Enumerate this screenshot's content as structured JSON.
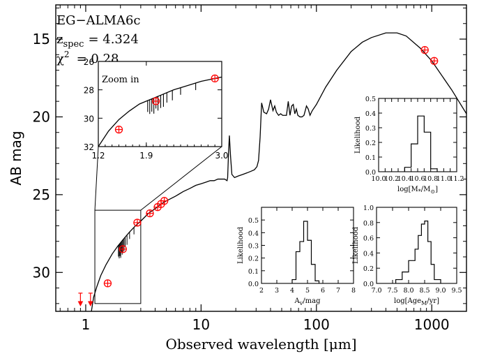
{
  "chart_data": [
    {
      "id": "main",
      "type": "line",
      "xlabel": "Observed wavelength [μm]",
      "ylabel": "AB mag",
      "xscale": "log",
      "xlim": [
        0.55,
        2000
      ],
      "ylim": [
        32.5,
        12.8
      ],
      "yaxis_inverted": true,
      "xticks": [
        1,
        10,
        100,
        1000
      ],
      "xtick_labels": [
        "1",
        "10",
        "100",
        "1000"
      ],
      "yticks": [
        15,
        20,
        25,
        30
      ],
      "ytick_labels": [
        "15",
        "20",
        "25",
        "30"
      ],
      "annotation": {
        "name": "EG−ALMA6c",
        "z_label": "z",
        "z_sub": "spec",
        "z_value": "=  4.324",
        "chi_label": "χ",
        "chi_sup": "2",
        "chi_value": "= 0.28"
      },
      "model_sed": {
        "x": [
          1.12,
          1.17,
          1.25,
          1.35,
          1.5,
          1.7,
          1.9,
          2.1,
          2.4,
          2.7,
          3.0,
          3.5,
          4.0,
          4.5,
          5.0,
          6.0,
          7.0,
          8.0,
          9.0,
          10.0,
          11.0,
          12.0,
          13.0,
          14.0,
          15.0,
          16.0,
          16.8,
          17.0,
          17.3,
          17.6,
          18.0,
          18.5,
          19.5,
          21.0,
          23.0,
          25.0,
          27.0,
          29.0,
          30.5,
          31.5,
          32.5,
          33.5,
          35.0,
          37.0,
          38.5,
          40.0,
          42.0,
          43.5,
          45.0,
          47.0,
          49.0,
          51.0,
          53.0,
          55.0,
          57.0,
          59.0,
          61.0,
          63.0,
          65.0,
          67.0,
          69.0,
          72.0,
          75.0,
          78.0,
          80.0,
          82.0,
          85.0,
          88.0,
          92.0,
          100,
          120,
          150,
          200,
          250,
          300,
          400,
          500,
          600,
          800,
          1000,
          1500,
          2000
        ],
        "y": [
          32.5,
          31.6,
          30.9,
          30.2,
          29.5,
          28.8,
          28.3,
          27.9,
          27.4,
          27.0,
          26.7,
          26.2,
          25.9,
          25.6,
          25.4,
          25.1,
          24.8,
          24.6,
          24.4,
          24.3,
          24.2,
          24.1,
          24.1,
          24.0,
          24.0,
          24.0,
          24.1,
          23.9,
          22.3,
          21.2,
          22.5,
          23.7,
          23.9,
          23.8,
          23.7,
          23.6,
          23.5,
          23.4,
          23.2,
          22.8,
          21.3,
          19.1,
          19.7,
          19.8,
          19.5,
          18.9,
          19.6,
          19.3,
          19.7,
          19.9,
          19.8,
          19.9,
          19.9,
          19.9,
          19.0,
          19.9,
          19.3,
          19.2,
          19.8,
          19.5,
          19.9,
          20.0,
          20.0,
          19.9,
          19.6,
          19.3,
          19.5,
          19.9,
          19.6,
          19.2,
          18.1,
          17.0,
          15.8,
          15.2,
          14.9,
          14.6,
          14.6,
          14.8,
          15.6,
          16.4,
          18.3,
          19.8
        ]
      },
      "photometry": {
        "x": [
          1.55,
          2.1,
          2.8,
          3.6,
          4.2,
          4.5,
          4.8,
          870,
          1050
        ],
        "y": [
          30.7,
          28.5,
          26.8,
          26.2,
          25.8,
          25.6,
          25.4,
          15.7,
          16.4
        ]
      },
      "upper_limits": {
        "x": [
          0.9,
          1.1
        ],
        "y": [
          31.6,
          31.6
        ]
      },
      "zoom_box": {
        "x": [
          1.2,
          3.0
        ],
        "y": [
          26.0,
          32.0
        ]
      }
    },
    {
      "id": "zoom",
      "type": "line",
      "title": "Zoom in",
      "xlim": [
        1.2,
        3.0
      ],
      "ylim": [
        32,
        26
      ],
      "xticks": [
        1.2,
        1.9,
        3.0
      ],
      "xtick_labels": [
        "1.2",
        "1.9",
        "3.0"
      ],
      "yticks": [
        26,
        28,
        30,
        32
      ],
      "ytick_labels": [
        "26",
        "28",
        "30",
        "32"
      ],
      "model_sed": {
        "x": [
          1.2,
          1.35,
          1.5,
          1.65,
          1.8,
          1.95,
          2.1,
          2.3,
          2.5,
          2.7,
          2.9,
          3.0
        ],
        "y": [
          32.0,
          30.9,
          30.1,
          29.5,
          29.0,
          28.7,
          28.4,
          28.0,
          27.7,
          27.4,
          27.2,
          27.1
        ]
      },
      "absorption_lines": {
        "x": [
          1.92,
          1.95,
          1.98,
          2.01,
          2.04,
          2.07,
          2.11,
          2.15,
          2.2,
          2.28,
          2.4,
          2.62
        ],
        "depth": [
          0.8,
          1.0,
          0.9,
          1.1,
          0.8,
          1.0,
          0.9,
          0.9,
          0.7,
          0.7,
          0.5,
          0.5
        ]
      },
      "photometry": {
        "x": [
          1.5,
          2.04,
          2.9
        ],
        "y": [
          30.8,
          28.8,
          27.2
        ]
      }
    },
    {
      "id": "hist-mass",
      "type": "bar",
      "xlabel": "log[M*/M⊙]",
      "ylabel": "Likelihood",
      "xlim": [
        10.0,
        11.2
      ],
      "ylim": [
        0,
        0.5
      ],
      "xticks": [
        10.0,
        10.1,
        10.2,
        10.3,
        10.4,
        10.5,
        10.6,
        10.7,
        10.8,
        10.9,
        11.0,
        11.1,
        11.2
      ],
      "xtick_labels": [
        "10.0",
        "",
        "10.2",
        "",
        "10.4",
        "",
        "10.6",
        "",
        "10.8",
        "",
        "11.0",
        "",
        "11.2"
      ],
      "yticks": [
        0,
        0.1,
        0.2,
        0.3,
        0.4,
        0.5
      ],
      "ytick_labels": [
        "0.0",
        "0.1",
        "0.2",
        "0.3",
        "0.4",
        "0.5"
      ],
      "bin_edges": [
        10.4,
        10.5,
        10.6,
        10.7,
        10.8,
        10.9
      ],
      "values": [
        0.03,
        0.19,
        0.38,
        0.27,
        0.02
      ]
    },
    {
      "id": "hist-av",
      "type": "bar",
      "xlabel": "Av/mag",
      "ylabel": "Likelihood",
      "xlim": [
        2,
        8
      ],
      "ylim": [
        0,
        0.6
      ],
      "xticks": [
        2,
        3,
        4,
        5,
        6,
        7,
        8
      ],
      "xtick_labels": [
        "2",
        "3",
        "4",
        "5",
        "6",
        "7",
        "8"
      ],
      "yticks": [
        0,
        0.1,
        0.2,
        0.3,
        0.4,
        0.5,
        0.6
      ],
      "ytick_labels": [
        "0.0",
        "0.1",
        "0.2",
        "0.3",
        "0.4",
        "0.5",
        ""
      ],
      "bin_edges": [
        4.0,
        4.25,
        4.5,
        4.75,
        5.0,
        5.25,
        5.5,
        5.75
      ],
      "values": [
        0.03,
        0.25,
        0.33,
        0.49,
        0.34,
        0.15,
        0.02
      ]
    },
    {
      "id": "hist-age",
      "type": "bar",
      "xlabel": "log[AgeM/yr]",
      "ylabel": "Likelihood",
      "xlim": [
        7.0,
        9.5
      ],
      "ylim": [
        0,
        1.0
      ],
      "xticks": [
        7.0,
        7.5,
        8.0,
        8.5,
        9.0,
        9.5
      ],
      "xtick_labels": [
        "7.0",
        "7.5",
        "8.0",
        "8.5",
        "9.0",
        "9.5"
      ],
      "yticks": [
        0,
        0.2,
        0.4,
        0.6,
        0.8,
        1.0
      ],
      "ytick_labels": [
        "0.0",
        "0.2",
        "0.4",
        "0.6",
        "0.8",
        "1.0"
      ],
      "bin_edges": [
        7.6,
        7.8,
        8.0,
        8.2,
        8.3,
        8.4,
        8.5,
        8.6,
        8.7,
        8.8,
        9.0
      ],
      "values": [
        0.05,
        0.15,
        0.3,
        0.45,
        0.63,
        0.78,
        0.82,
        0.55,
        0.25,
        0.05
      ]
    }
  ],
  "colors": {
    "axis": "#000000",
    "photometry": "#ff0000"
  }
}
